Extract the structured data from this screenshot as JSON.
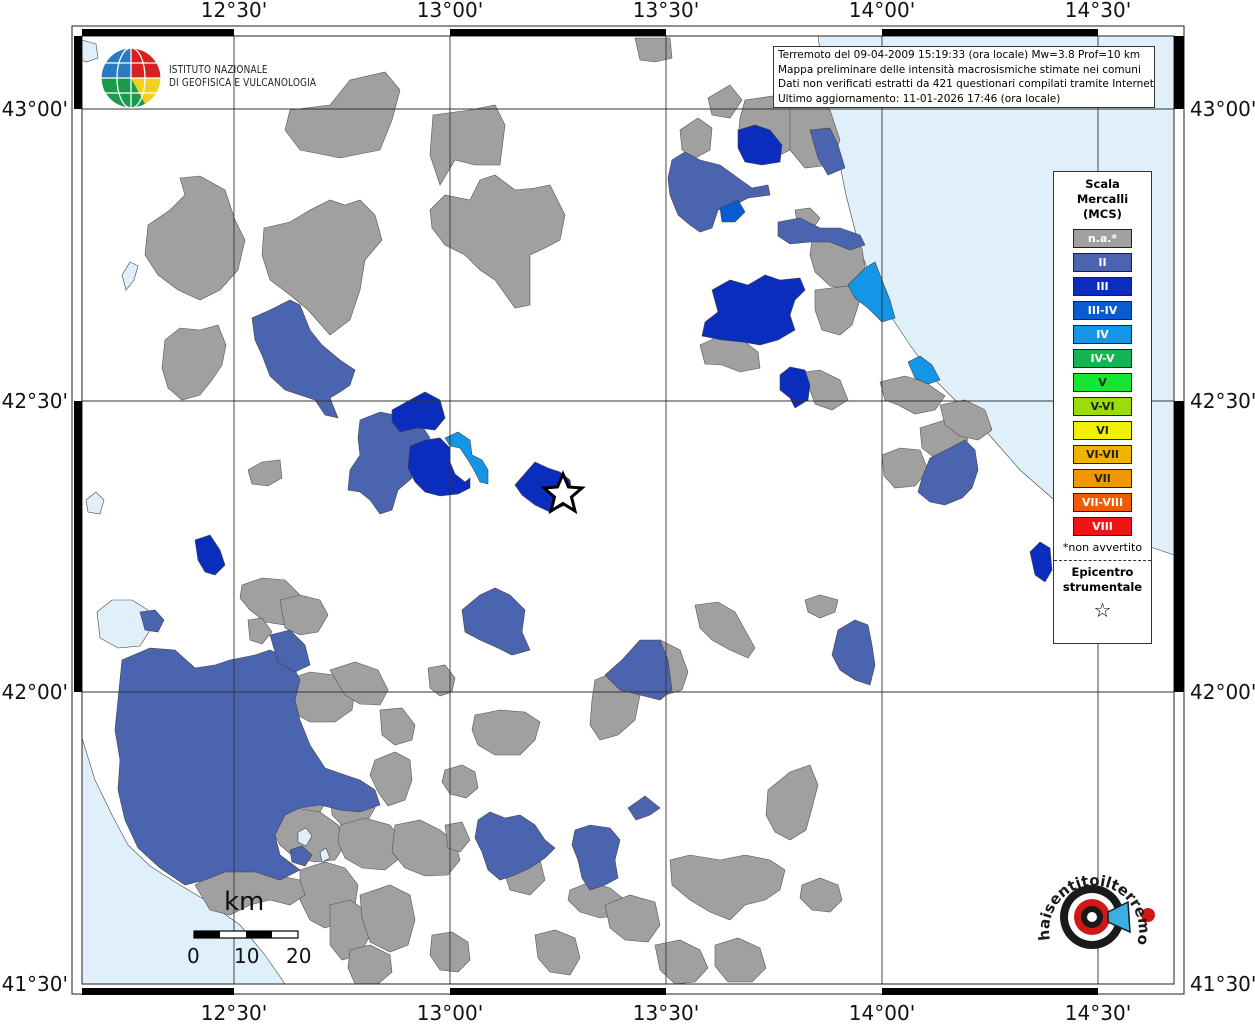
{
  "info": {
    "line1": "Terremoto del 09-04-2009 15:19:33 (ora locale) Mw=3.8 Prof=10 km",
    "line2": "Mappa preliminare delle intensità macrosismiche stimate nei comuni",
    "line3": "Dati non verificati estratti da 421 questionari compilati tramite Internet.",
    "line4": "Ultimo aggiornamento: 11-01-2026 17:46 (ora locale)"
  },
  "logo": {
    "line1": "ISTITUTO NAZIONALE",
    "line2": "DI GEOFISICA E VULCANOLOGIA"
  },
  "axes": {
    "lon_ticks": [
      "12°30'",
      "13°00'",
      "13°30'",
      "14°00'",
      "14°30'"
    ],
    "lat_ticks": [
      "43°00'",
      "42°30'",
      "42°00'",
      "41°30'"
    ]
  },
  "legend": {
    "title": [
      "Scala",
      "Mercalli",
      "(MCS)"
    ],
    "classes": [
      {
        "label": "n.a.*",
        "color": "#a0a0a0"
      },
      {
        "label": "II",
        "color": "#4a64b0"
      },
      {
        "label": "III",
        "color": "#0a2dbe"
      },
      {
        "label": "III-IV",
        "color": "#0a5ad2"
      },
      {
        "label": "IV",
        "color": "#1496e6"
      },
      {
        "label": "IV-V",
        "color": "#14b450"
      },
      {
        "label": "V",
        "color": "#14e632"
      },
      {
        "label": "V-VI",
        "color": "#9bdc0a"
      },
      {
        "label": "VI",
        "color": "#f0f000"
      },
      {
        "label": "VI-VII",
        "color": "#f0b400"
      },
      {
        "label": "VII",
        "color": "#f09600"
      },
      {
        "label": "VII-VIII",
        "color": "#f05a00"
      },
      {
        "label": "VIII",
        "color": "#f01414"
      }
    ],
    "note": "*non avvertito",
    "epicenter_label": [
      "Epicentro",
      "strumentale"
    ],
    "epicenter_symbol": "☆"
  },
  "scalebar": {
    "unit": "km",
    "labels": [
      "0",
      "10",
      "20"
    ]
  },
  "watermark": {
    "text": "haisentitoilterremoto.it"
  },
  "colors": {
    "sea": "#dff0fb",
    "gray": "#a0a0a0",
    "blue2": "#4a64b0",
    "blue3": "#0a2dbe",
    "blue34": "#0a5ad2",
    "blue4": "#1496e6"
  }
}
